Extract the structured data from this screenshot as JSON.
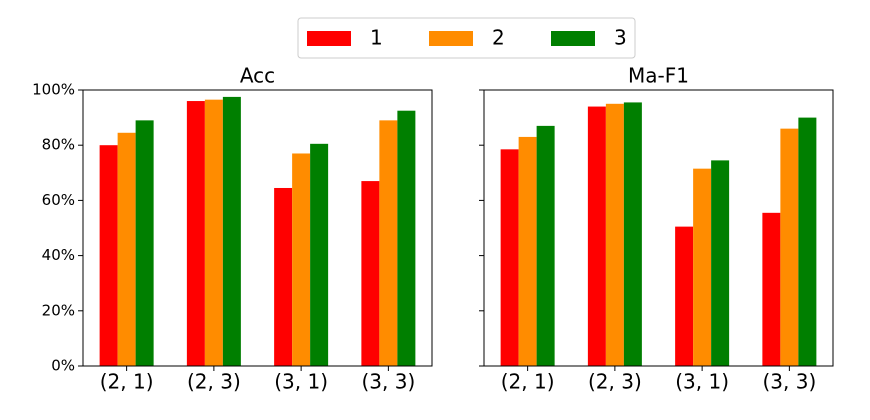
{
  "chart_data": [
    {
      "type": "bar",
      "title": "Acc",
      "categories": [
        "(2, 1)",
        "(2, 3)",
        "(3, 1)",
        "(3, 3)"
      ],
      "series": [
        {
          "name": "1",
          "color": "#ff0000",
          "values": [
            80,
            96,
            64.5,
            67
          ]
        },
        {
          "name": "2",
          "color": "#ff8c00",
          "values": [
            84.5,
            96.5,
            77,
            89
          ]
        },
        {
          "name": "3",
          "color": "#007f00",
          "values": [
            89,
            97.5,
            80.5,
            92.5
          ]
        }
      ],
      "ylim": [
        0,
        100
      ],
      "yticks": [
        {
          "value": 0,
          "label": "0%"
        },
        {
          "value": 20,
          "label": "20%"
        },
        {
          "value": 40,
          "label": "40%"
        },
        {
          "value": 60,
          "label": "60%"
        },
        {
          "value": 80,
          "label": "80%"
        },
        {
          "value": 100,
          "label": "100%"
        }
      ]
    },
    {
      "type": "bar",
      "title": "Ma-F1",
      "categories": [
        "(2, 1)",
        "(2, 3)",
        "(3, 1)",
        "(3, 3)"
      ],
      "series": [
        {
          "color": "#ff0000",
          "values": [
            78.5,
            94,
            50.5,
            55.5
          ]
        },
        {
          "color": "#ff8c00",
          "values": [
            83,
            95,
            71.5,
            86
          ]
        },
        {
          "color": "#007f00",
          "values": [
            87,
            95.5,
            74.5,
            90
          ]
        }
      ],
      "ylim": [
        0,
        100
      ],
      "yticks": [
        0,
        20,
        40,
        60,
        80,
        100
      ]
    }
  ]
}
